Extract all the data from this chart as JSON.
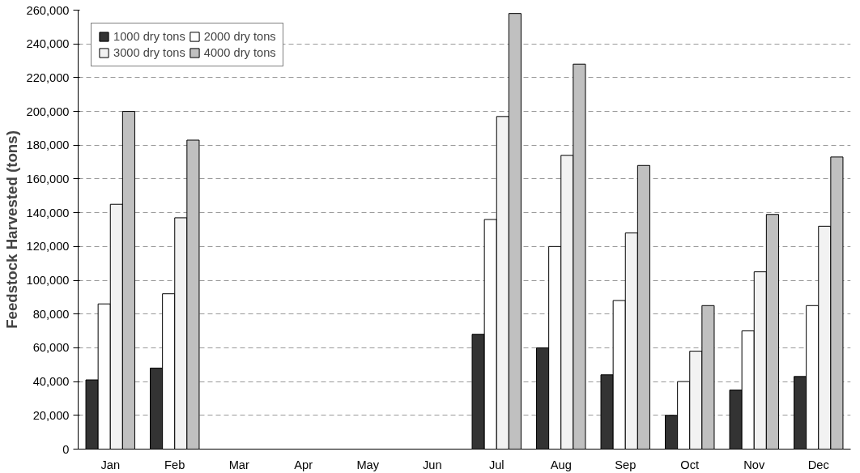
{
  "chart_data": {
    "type": "bar",
    "ylabel": "Feedstock Harvested (tons)",
    "categories": [
      "Jan",
      "Feb",
      "Mar",
      "Apr",
      "May",
      "Jun",
      "Jul",
      "Aug",
      "Sep",
      "Oct",
      "Nov",
      "Dec"
    ],
    "series": [
      {
        "name": "1000 dry tons",
        "color": "#333333",
        "values": [
          41000,
          48000,
          null,
          null,
          null,
          null,
          68000,
          60000,
          44000,
          20000,
          35000,
          43000
        ]
      },
      {
        "name": "2000 dry tons",
        "color": "#ffffff",
        "values": [
          86000,
          92000,
          null,
          null,
          null,
          null,
          136000,
          120000,
          88000,
          40000,
          70000,
          85000
        ]
      },
      {
        "name": "3000 dry tons",
        "color": "#f2f2f2",
        "values": [
          145000,
          137000,
          null,
          null,
          null,
          null,
          197000,
          174000,
          128000,
          58000,
          105000,
          132000
        ]
      },
      {
        "name": "4000 dry tons",
        "color": "#c0c0c0",
        "values": [
          200000,
          183000,
          null,
          null,
          null,
          null,
          258000,
          228000,
          168000,
          85000,
          139000,
          173000
        ]
      }
    ],
    "ylim": [
      0,
      260000
    ],
    "yticks": [
      {
        "value": 0,
        "label": "0"
      },
      {
        "value": 20000,
        "label": "20,000"
      },
      {
        "value": 40000,
        "label": "40,000"
      },
      {
        "value": 60000,
        "label": "60,000"
      },
      {
        "value": 80000,
        "label": "80,000"
      },
      {
        "value": 100000,
        "label": "100,000"
      },
      {
        "value": 120000,
        "label": "120,000"
      },
      {
        "value": 140000,
        "label": "140,000"
      },
      {
        "value": 160000,
        "label": "160,000"
      },
      {
        "value": 180000,
        "label": "180,000"
      },
      {
        "value": 200000,
        "label": "200,000"
      },
      {
        "value": 220000,
        "label": "220,000"
      },
      {
        "value": 240000,
        "label": "240,000"
      },
      {
        "value": 260000,
        "label": "260,000"
      }
    ],
    "grid": "y",
    "legend": "top left"
  }
}
